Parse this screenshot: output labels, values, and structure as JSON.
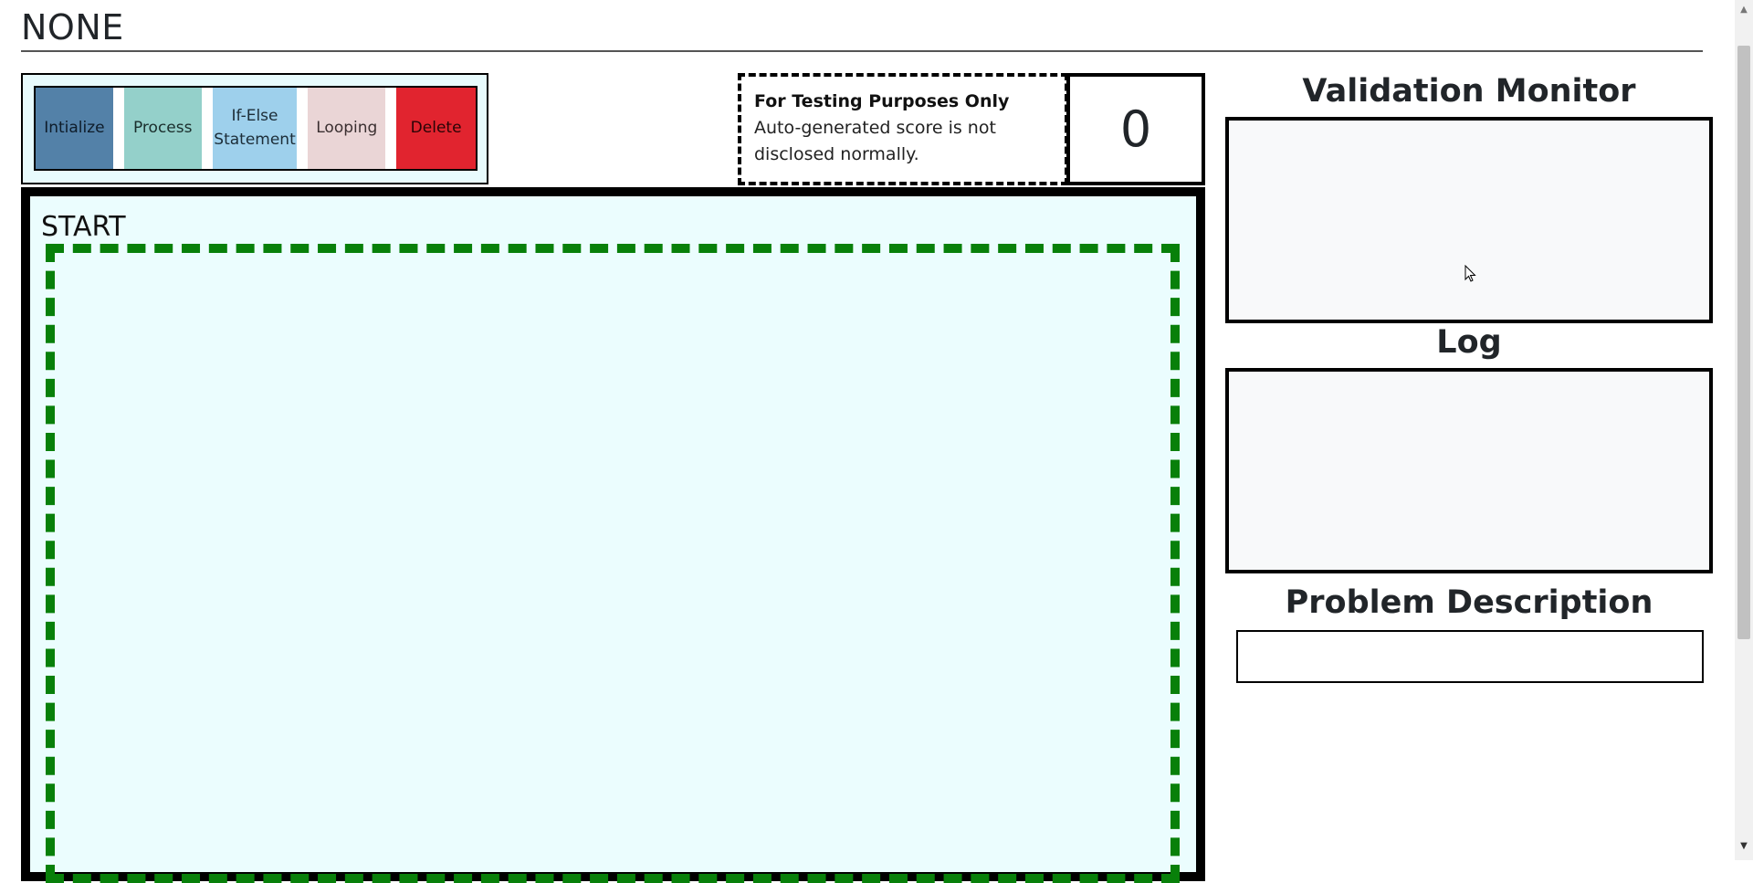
{
  "page": {
    "title": "NONE"
  },
  "toolbox": {
    "buttons": [
      {
        "label": "Intialize",
        "color": "#5381a8"
      },
      {
        "label": "Process",
        "color": "#94d0ca"
      },
      {
        "label": "If-Else Statement",
        "color": "#9ed0ec"
      },
      {
        "label": "Looping",
        "color": "#ead5d6"
      },
      {
        "label": "Delete",
        "color": "#e1242f"
      }
    ]
  },
  "testing": {
    "heading": "For Testing Purposes Only",
    "body": "Auto-generated score is not disclosed normally."
  },
  "score": {
    "value": "0"
  },
  "workspace": {
    "start_label": "START",
    "drop_zone_color": "#08800a"
  },
  "panels": {
    "monitor_title": "Validation Monitor",
    "monitor_content": "",
    "log_title": "Log",
    "log_content": "",
    "problem_title": "Problem Description",
    "problem_content": ""
  },
  "icons": {
    "scroll_up": "scroll-up-arrow-icon",
    "scroll_down": "scroll-down-arrow-icon",
    "cursor": "mouse-pointer-icon"
  }
}
